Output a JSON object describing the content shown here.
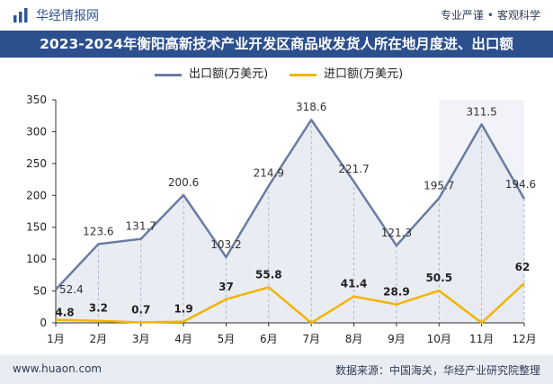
{
  "header": {
    "brand": "华经情报网",
    "tagline_left": "专业严谨",
    "tagline_right": "客观科学"
  },
  "title": "2023-2024年衡阳高新技术产业开发区商品收发货人所在地月度进、出口额",
  "footer": {
    "site": "www.huaon.com",
    "source": "数据来源：中国海关，华经产业研究院整理"
  },
  "colors": {
    "export": "#6a7ba3",
    "import": "#f2b400",
    "title_bg": "#2c4f8e"
  },
  "chart_data": {
    "type": "line",
    "categories": [
      "1月",
      "2月",
      "3月",
      "4月",
      "5月",
      "6月",
      "7月",
      "8月",
      "9月",
      "10月",
      "11月",
      "12月"
    ],
    "series": [
      {
        "name": "出口额(万美元)",
        "values": [
          52.4,
          123.6,
          131.7,
          200.6,
          103.2,
          214.9,
          318.6,
          221.7,
          121.3,
          195.7,
          311.5,
          194.6
        ]
      },
      {
        "name": "进口额(万美元)",
        "values": [
          4.8,
          3.2,
          0.7,
          1.9,
          37,
          55.8,
          0,
          41.4,
          28.9,
          50.5,
          0,
          62
        ]
      }
    ],
    "data_labels": {
      "export": [
        "52.4",
        "123.6",
        "131.7",
        "200.6",
        "103.2",
        "214.9",
        "318.6",
        "221.7",
        "121.3",
        "195.7",
        "311.5",
        "194.6"
      ],
      "import": [
        "4.8",
        "3.2",
        "0.7",
        "1.9",
        "37",
        "55.8",
        "",
        "41.4",
        "28.9",
        "50.5",
        "",
        "62"
      ]
    },
    "y_ticks": [
      "0",
      "50",
      "100",
      "150",
      "200",
      "250",
      "300",
      "350"
    ],
    "ylim": [
      0,
      350
    ],
    "legend_position": "top-center",
    "grid": false
  }
}
